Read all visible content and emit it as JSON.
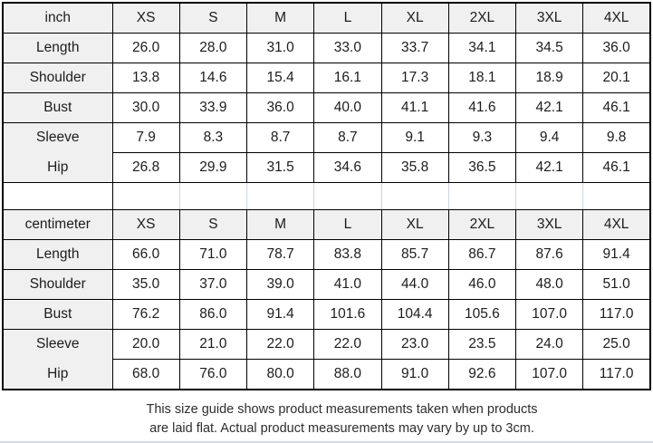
{
  "chart_data": [
    {
      "type": "table",
      "unit": "inch",
      "columns": [
        "XS",
        "S",
        "M",
        "L",
        "XL",
        "2XL",
        "3XL",
        "4XL"
      ],
      "rows": [
        {
          "label": "Length",
          "values": [
            "26.0",
            "28.0",
            "31.0",
            "33.0",
            "33.7",
            "34.1",
            "34.5",
            "36.0"
          ]
        },
        {
          "label": "Shoulder",
          "values": [
            "13.8",
            "14.6",
            "15.4",
            "16.1",
            "17.3",
            "18.1",
            "18.9",
            "20.1"
          ]
        },
        {
          "label": "Bust",
          "values": [
            "30.0",
            "33.9",
            "36.0",
            "40.0",
            "41.1",
            "41.6",
            "42.1",
            "46.1"
          ]
        },
        {
          "label": "Sleeve",
          "values": [
            "7.9",
            "8.3",
            "8.7",
            "8.7",
            "9.1",
            "9.3",
            "9.4",
            "9.8"
          ]
        },
        {
          "label": "Hip",
          "values": [
            "26.8",
            "29.9",
            "31.5",
            "34.6",
            "35.8",
            "36.5",
            "42.1",
            "46.1"
          ]
        }
      ],
      "merged_label_rows": [
        "Sleeve",
        "Hip"
      ]
    },
    {
      "type": "table",
      "unit": "centimeter",
      "columns": [
        "XS",
        "S",
        "M",
        "L",
        "XL",
        "2XL",
        "3XL",
        "4XL"
      ],
      "rows": [
        {
          "label": "Length",
          "values": [
            "66.0",
            "71.0",
            "78.7",
            "83.8",
            "85.7",
            "86.7",
            "87.6",
            "91.4"
          ]
        },
        {
          "label": "Shoulder",
          "values": [
            "35.0",
            "37.0",
            "39.0",
            "41.0",
            "44.0",
            "46.0",
            "48.0",
            "51.0"
          ]
        },
        {
          "label": "Bust",
          "values": [
            "76.2",
            "86.0",
            "91.4",
            "101.6",
            "104.4",
            "105.6",
            "107.0",
            "117.0"
          ]
        },
        {
          "label": "Sleeve",
          "values": [
            "20.0",
            "21.0",
            "22.0",
            "22.0",
            "23.0",
            "23.5",
            "24.0",
            "25.0"
          ]
        },
        {
          "label": "Hip",
          "values": [
            "68.0",
            "76.0",
            "80.0",
            "88.0",
            "91.0",
            "92.6",
            "107.0",
            "117.0"
          ]
        }
      ],
      "merged_label_rows": [
        "Sleeve",
        "Hip"
      ]
    }
  ],
  "note": {
    "line1": "This size guide shows product measurements taken when products",
    "line2": "are laid flat. Actual product measurements may vary by up to 3cm."
  },
  "colors": {
    "header_bg": "#f0f0f0",
    "label_bg": "#f0f0f0",
    "cell_bg": "#ffffff",
    "grid": "#000000",
    "spacer_grid": "#ccd4e2",
    "text": "#1c1c1c"
  }
}
